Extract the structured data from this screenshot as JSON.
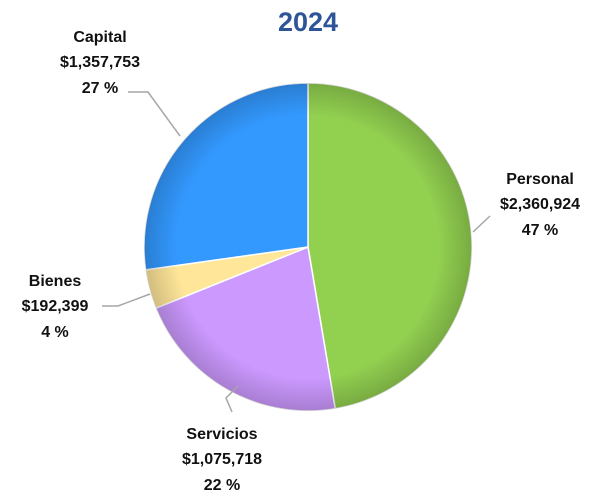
{
  "chart_data": {
    "type": "pie",
    "title": "2024",
    "categories": [
      "Personal",
      "Servicios",
      "Bienes",
      "Capital"
    ],
    "values": [
      2360924,
      1075718,
      192399,
      1357753
    ],
    "value_labels": [
      "$2,360,924",
      "$1,075,718",
      "$192,399",
      "$1,357,753"
    ],
    "percents": [
      47,
      22,
      4,
      27
    ],
    "percent_labels": [
      "47 %",
      "22 %",
      "4 %",
      "27 %"
    ],
    "colors": [
      "#92d050",
      "#cc99ff",
      "#ffe699",
      "#3399ff"
    ]
  }
}
